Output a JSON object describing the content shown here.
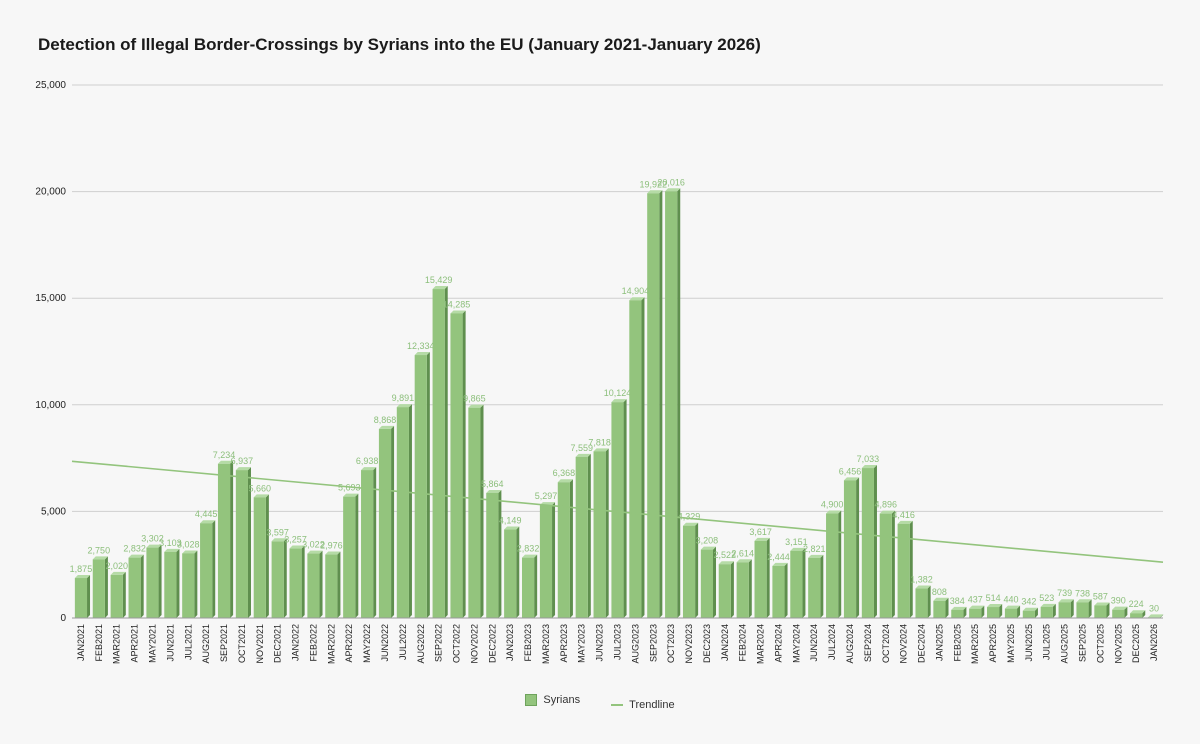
{
  "colors": {
    "bar": "#93c47d",
    "bar_side": "#5f8f4e",
    "bar_top": "#b5dba6",
    "trend": "#93c47d",
    "label": "#8cbf7b",
    "grid": "#cfcfcf"
  },
  "chart_data": {
    "type": "bar",
    "title": "Detection of Illegal Border-Crossings by Syrians into the EU (January 2021-January 2026)",
    "xlabel": "",
    "ylabel": "",
    "ylim": [
      0,
      25000
    ],
    "yticks": [
      "0",
      "5,000",
      "10,000",
      "15,000",
      "20,000",
      "25,000"
    ],
    "ytick_values": [
      0,
      5000,
      10000,
      15000,
      20000,
      25000
    ],
    "grid": true,
    "legend_position": "bottom",
    "categories": [
      "JAN2021",
      "FEB2021",
      "MAR2021",
      "APR2021",
      "MAY2021",
      "JUN2021",
      "JUL2021",
      "AUG2021",
      "SEP2021",
      "OCT2021",
      "NOV2021",
      "DEC2021",
      "JAN2022",
      "FEB2022",
      "MAR2022",
      "APR2022",
      "MAY2022",
      "JUN2022",
      "JUL2022",
      "AUG2022",
      "SEP2022",
      "OCT2022",
      "NOV2022",
      "DEC2022",
      "JAN2023",
      "FEB2023",
      "MAR2023",
      "APR2023",
      "MAY2023",
      "JUN2023",
      "JUL2023",
      "AUG2023",
      "SEP2023",
      "OCT2023",
      "NOV2023",
      "DEC2023",
      "JAN2024",
      "FEB2024",
      "MAR2024",
      "APR2024",
      "MAY2024",
      "JUN2024",
      "JUL2024",
      "AUG2024",
      "SEP2024",
      "OCT2024",
      "NOV2024",
      "DEC2024",
      "JAN2025",
      "FEB2025",
      "MAR2025",
      "APR2025",
      "MAY2025",
      "JUN2025",
      "JUL2025",
      "AUG2025",
      "SEP2025",
      "OCT2025",
      "NOV2025",
      "DEC2025",
      "JAN2026"
    ],
    "series": [
      {
        "name": "Syrians",
        "values": [
          1875,
          2750,
          2020,
          2832,
          3302,
          3103,
          3028,
          4445,
          7234,
          6937,
          5660,
          3597,
          3257,
          3022,
          2976,
          5693,
          6938,
          8868,
          9891,
          12334,
          15429,
          14285,
          9865,
          5864,
          4149,
          2832,
          5297,
          6368,
          7559,
          7818,
          10124,
          14904,
          19922,
          20016,
          4329,
          3208,
          2522,
          2614,
          3617,
          2444,
          3151,
          2821,
          4900,
          6456,
          7033,
          4896,
          4416,
          1382,
          808,
          384,
          437,
          514,
          440,
          342,
          523,
          739,
          738,
          587,
          390,
          224,
          30
        ],
        "labels": [
          "1,875",
          "2,750",
          "2,020",
          "2,832",
          "3,302",
          "3,103",
          "3,028",
          "4,445",
          "7,234",
          "6,937",
          "5,660",
          "3,597",
          "3,257",
          "3,022",
          "2,976",
          "5,693",
          "6,938",
          "8,868",
          "9,891",
          "12,334",
          "15,429",
          "14,285",
          "9,865",
          "5,864",
          "4,149",
          "2,832",
          "5,297",
          "6,368",
          "7,559",
          "7,818",
          "10,124",
          "14,904",
          "19,922",
          "20,016",
          "4,329",
          "3,208",
          "2,522",
          "2,614",
          "3,617",
          "2,444",
          "3,151",
          "2,821",
          "4,900",
          "6,456",
          "7,033",
          "4,896",
          "4,416",
          "1,382",
          "808",
          "384",
          "437",
          "514",
          "440",
          "342",
          "523",
          "739",
          "738",
          "587",
          "390",
          "224",
          "30"
        ]
      },
      {
        "name": "Trendline",
        "type": "line",
        "start_value": 7350,
        "end_value": 2620
      }
    ]
  }
}
